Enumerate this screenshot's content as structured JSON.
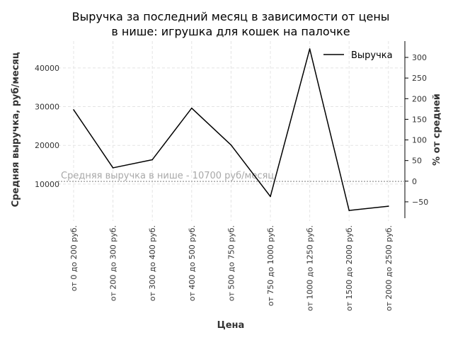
{
  "chart_data": {
    "type": "line",
    "title_line1": "Выручка за последний месяц в зависимости от цены",
    "title_line2": "в нише: игрушка для кошек на палочке",
    "xlabel": "Цена",
    "ylabel": "Средняя выручка, руб/месяц",
    "y2label": "% от средней",
    "categories": [
      "от 0 до 200 руб.",
      "от 200 до 300 руб.",
      "от 300 до 400 руб.",
      "от 400 до 500 руб.",
      "от 500 до 750 руб.",
      "от 750 до 1000 руб.",
      "от 1000 до 1250 руб.",
      "от 1500 до 2000 руб.",
      "от 2000 до 2500 руб."
    ],
    "series": [
      {
        "name": "Выручка",
        "values": [
          29200,
          14200,
          16300,
          29600,
          20100,
          6800,
          44900,
          3200,
          4300
        ]
      }
    ],
    "ylim": [
      1000,
      47000
    ],
    "yticks": [
      10000,
      20000,
      30000,
      40000
    ],
    "ytick_labels": [
      "10000",
      "20000",
      "30000",
      "40000"
    ],
    "y2ticks": [
      -50,
      0,
      50,
      100,
      150,
      200,
      250,
      300
    ],
    "y2tick_labels": [
      "−50",
      "0",
      "50",
      "100",
      "150",
      "200",
      "250",
      "300"
    ],
    "average": 10700,
    "average_label": "Средняя выручка в нише - 10700 руб/месяц",
    "grid": true,
    "legend_position": "top-right",
    "colors": {
      "line": "#000000",
      "grid": "#e4e4e4",
      "average": "#a8a8a8"
    }
  }
}
